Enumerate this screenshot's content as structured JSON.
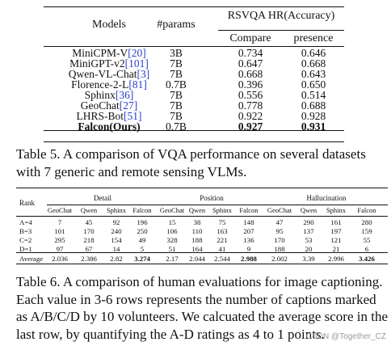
{
  "table5": {
    "headers": {
      "models": "Models",
      "params": "#params",
      "group": "RSVQA HR(Accuracy)",
      "compare": "Compare",
      "presence": "presence"
    },
    "rows": [
      {
        "name": "MiniCPM-V",
        "cite": "[20]",
        "params": "3B",
        "compare": "0.734",
        "presence": "0.646",
        "bold": false
      },
      {
        "name": "MiniGPT-v2",
        "cite": "[101]",
        "params": "7B",
        "compare": "0.647",
        "presence": "0.668",
        "bold": false
      },
      {
        "name": "Qwen-VL-Chat",
        "cite": "[3]",
        "params": "7B",
        "compare": "0.668",
        "presence": "0.643",
        "bold": false
      },
      {
        "name": "Florence-2-L",
        "cite": "[81]",
        "params": "0.7B",
        "compare": "0.396",
        "presence": "0.650",
        "bold": false
      },
      {
        "name": "Sphinx",
        "cite": "[36]",
        "params": "7B",
        "compare": "0.556",
        "presence": "0.514",
        "bold": false
      },
      {
        "name": "GeoChat",
        "cite": "[27]",
        "params": "7B",
        "compare": "0.778",
        "presence": "0.688",
        "bold": false
      },
      {
        "name": "LHRS-Bot",
        "cite": "[51]",
        "params": "7B",
        "compare": "0.922",
        "presence": "0.928",
        "bold": false
      },
      {
        "name": "Falcon(Ours)",
        "cite": "",
        "params": "0.7B",
        "compare": "0.927",
        "presence": "0.931",
        "bold": true
      }
    ],
    "caption": "Table 5.  A comparison of VQA performance on several datasets with 7 generic and remote sensing VLMs."
  },
  "table6": {
    "rank_label": "Rank",
    "groups": [
      "Detail",
      "Position",
      "Hallucination"
    ],
    "subheaders": [
      "GeoChat",
      "Qwen",
      "Sphinx",
      "Falcon",
      "GeoChat",
      "Qwen",
      "Sphinx",
      "Falcon",
      "GeoChat",
      "Qwen",
      "Sphinx",
      "Falcon"
    ],
    "rows": [
      {
        "label": "A=4",
        "values": [
          "7",
          "45",
          "92",
          "196",
          "15",
          "38",
          "75",
          "148",
          "47",
          "290",
          "161",
          "280"
        ]
      },
      {
        "label": "B=3",
        "values": [
          "101",
          "170",
          "240",
          "250",
          "106",
          "110",
          "163",
          "207",
          "95",
          "137",
          "197",
          "159"
        ]
      },
      {
        "label": "C=2",
        "values": [
          "295",
          "218",
          "154",
          "49",
          "328",
          "188",
          "221",
          "136",
          "170",
          "53",
          "121",
          "55"
        ]
      },
      {
        "label": "D=1",
        "values": [
          "97",
          "67",
          "14",
          "5",
          "51",
          "164",
          "41",
          "9",
          "188",
          "20",
          "21",
          "6"
        ]
      },
      {
        "label": "Average",
        "values": [
          "2.036",
          "2.386",
          "2.82",
          "3.274",
          "2.17",
          "2.044",
          "2.544",
          "2.988",
          "2.002",
          "3.39",
          "2.996",
          "3.426"
        ]
      }
    ],
    "caption": "Table 6.  A comparison of human evaluations for image captioning. Each value in 3-6 rows represents the number of captions marked as A/B/C/D by 10 volunteers.  We calcuated the average score in the last row, by quantifying the A-D ratings as 4 to 1 points."
  },
  "watermark": "CSDN @Together_CZ"
}
